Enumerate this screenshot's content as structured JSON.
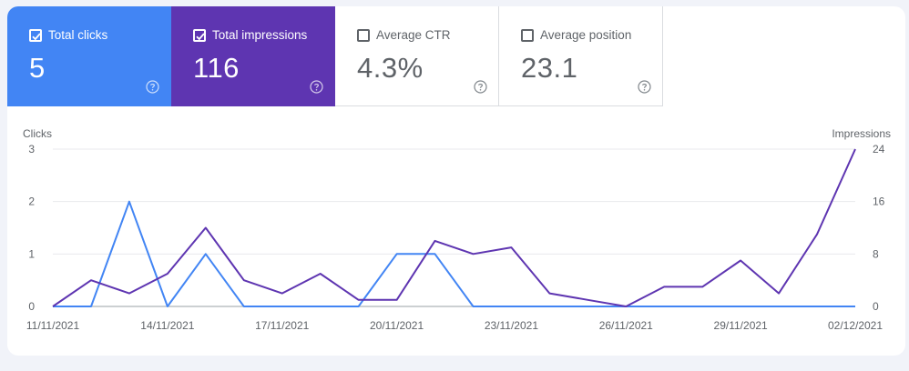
{
  "metrics": [
    {
      "label": "Total clicks",
      "value": "5",
      "checked": true,
      "color": "#4285f4"
    },
    {
      "label": "Total impressions",
      "value": "116",
      "checked": true,
      "color": "#5e35b1"
    },
    {
      "label": "Average CTR",
      "value": "4.3%",
      "checked": false
    },
    {
      "label": "Average position",
      "value": "23.1",
      "checked": false
    }
  ],
  "icons": {
    "checkbox": "checkbox-icon",
    "help": "help-circle-icon"
  },
  "chart_data": {
    "type": "line",
    "x": [
      "11/11/2021",
      "12/11/2021",
      "13/11/2021",
      "14/11/2021",
      "15/11/2021",
      "16/11/2021",
      "17/11/2021",
      "18/11/2021",
      "19/11/2021",
      "20/11/2021",
      "21/11/2021",
      "22/11/2021",
      "23/11/2021",
      "24/11/2021",
      "25/11/2021",
      "26/11/2021",
      "27/11/2021",
      "28/11/2021",
      "29/11/2021",
      "30/11/2021",
      "01/12/2021",
      "02/12/2021"
    ],
    "x_tick_labels": [
      "11/11/2021",
      "14/11/2021",
      "17/11/2021",
      "20/11/2021",
      "23/11/2021",
      "26/11/2021",
      "29/11/2021",
      "02/12/2021"
    ],
    "left_axis": {
      "label": "Clicks",
      "ticks": [
        "0",
        "1",
        "2",
        "3"
      ],
      "range": [
        0,
        3
      ]
    },
    "right_axis": {
      "label": "Impressions",
      "ticks": [
        "0",
        "8",
        "16",
        "24"
      ],
      "range": [
        0,
        24
      ]
    },
    "grid": true,
    "series": [
      {
        "axis": "left",
        "color": "#4285f4",
        "values": [
          0,
          0,
          2,
          0,
          1,
          0,
          0,
          0,
          0,
          1,
          1,
          0,
          0,
          0,
          0,
          0,
          0,
          0,
          0,
          0,
          0,
          0
        ]
      },
      {
        "axis": "right",
        "color": "#5e35b1",
        "values": [
          0,
          4,
          2,
          5,
          12,
          4,
          2,
          5,
          1,
          1,
          10,
          8,
          9,
          2,
          1,
          0,
          3,
          3,
          7,
          2,
          11,
          24
        ]
      }
    ]
  }
}
